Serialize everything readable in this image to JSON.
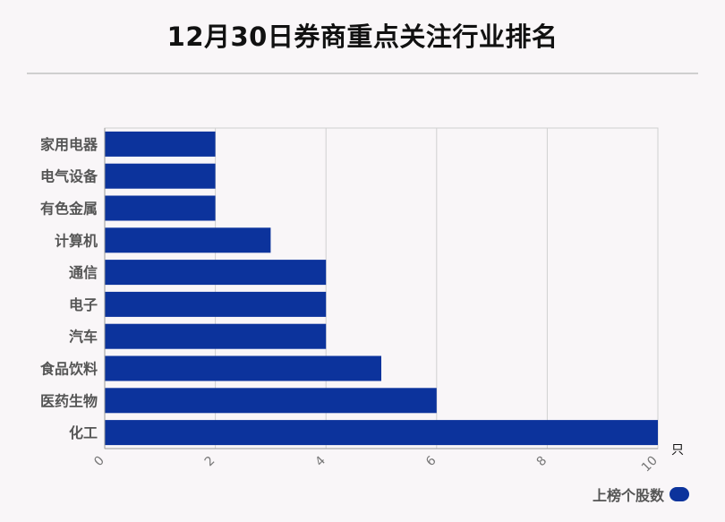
{
  "colors": {
    "bar": "#0c339c",
    "grid": "#d0d0d0",
    "axis": "#999999",
    "label": "#555555"
  },
  "chart_data": {
    "type": "bar",
    "orientation": "horizontal",
    "title": "12月30日券商重点关注行业排名",
    "categories": [
      "家用电器",
      "电气设备",
      "有色金属",
      "计算机",
      "通信",
      "电子",
      "汽车",
      "食品饮料",
      "医药生物",
      "化工"
    ],
    "series": [
      {
        "name": "上榜个股数",
        "values": [
          2,
          2,
          2,
          3,
          4,
          4,
          4,
          5,
          6,
          10
        ]
      }
    ],
    "xlim": [
      0,
      10
    ],
    "xticks": [
      0,
      2,
      4,
      6,
      8,
      10
    ],
    "xunit": "只",
    "grid": true,
    "legend": "bottom-right"
  }
}
